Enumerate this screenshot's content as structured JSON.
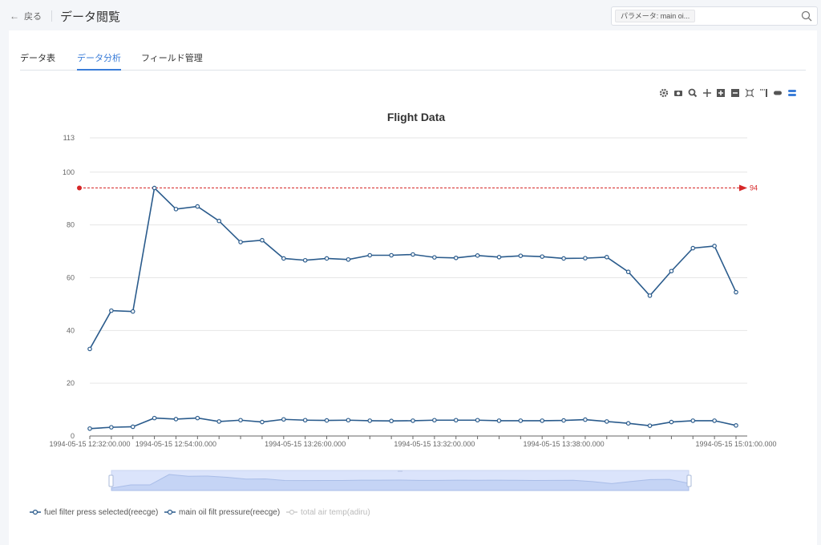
{
  "header": {
    "back_label": "戻る",
    "title": "データ閲覧"
  },
  "search": {
    "tag": "パラメータ: main oi..."
  },
  "tabs": [
    {
      "label": "データ表",
      "active": false
    },
    {
      "label": "データ分析",
      "active": true
    },
    {
      "label": "フィールド管理",
      "active": false
    }
  ],
  "toolbox": [
    "gear-icon",
    "camera-icon",
    "zoom-icon",
    "move-icon",
    "plus-square-icon",
    "minus-square-icon",
    "fullscreen-icon",
    "brush-icon",
    "eraser-icon",
    "layers-icon"
  ],
  "colors": {
    "accent": "#3b7dd8",
    "series": "#2a5b8c",
    "markline": "#d62728",
    "zoom_fill": "#dbe4fb"
  },
  "chart_data": {
    "type": "line",
    "title": "Flight Data",
    "x_tick_labels": [
      "1994-05-15 12:32:00.000",
      "1994-05-15 12:54:00.000",
      "1994-05-15 13:26:00.000",
      "1994-05-15 13:32:00.000",
      "1994-05-15 13:38:00.000",
      "1994-05-15 15:01:00.000"
    ],
    "x_tick_indices": [
      0,
      4,
      10,
      16,
      22,
      30
    ],
    "y_ticks": [
      0,
      20,
      40,
      60,
      80,
      100,
      113
    ],
    "ylim": [
      0,
      113
    ],
    "grid": true,
    "legend_position": "bottom-left",
    "markline": {
      "value": 94,
      "label": "94"
    },
    "series": [
      {
        "name": "fuel filter press selected(reecge)",
        "visible": true,
        "values": [
          2.8,
          3.3,
          3.5,
          6.8,
          6.4,
          6.8,
          5.5,
          6,
          5.3,
          6.3,
          6,
          5.9,
          6,
          5.8,
          5.7,
          5.8,
          6,
          6,
          6,
          5.8,
          5.8,
          5.8,
          5.9,
          6.2,
          5.5,
          4.8,
          3.9,
          5.3,
          5.8,
          5.8,
          4
        ]
      },
      {
        "name": "main oil filt pressure(reecge)",
        "visible": true,
        "values": [
          33,
          47.5,
          47.2,
          94,
          86,
          87,
          81.5,
          73.5,
          74.2,
          67.3,
          66.6,
          67.3,
          66.9,
          68.5,
          68.5,
          68.8,
          67.7,
          67.5,
          68.4,
          67.8,
          68.3,
          68,
          67.3,
          67.4,
          67.8,
          62.2,
          53.2,
          62.5,
          71.2,
          72,
          54.5
        ]
      },
      {
        "name": "total air temp(adiru)",
        "visible": false,
        "values": []
      }
    ]
  }
}
